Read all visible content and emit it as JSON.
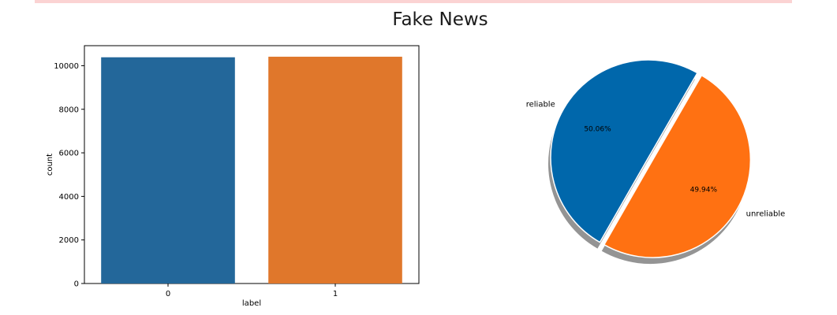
{
  "figure_title": "Fake News",
  "chart_data": [
    {
      "type": "bar",
      "title": "",
      "xlabel": "label",
      "ylabel": "count",
      "categories": [
        "0",
        "1"
      ],
      "values": [
        10387,
        10413
      ],
      "ylim": [
        0,
        10920
      ],
      "yticks": [
        0,
        2000,
        4000,
        6000,
        8000,
        10000
      ],
      "colors": [
        "#23679a",
        "#e0772b"
      ],
      "grid": false
    },
    {
      "type": "pie",
      "labels": [
        "reliable",
        "unreliable"
      ],
      "values": [
        50.06,
        49.94
      ],
      "percent_labels": [
        "50.06%",
        "49.94%"
      ],
      "colors": [
        "#0067ab",
        "#ff7112"
      ],
      "explode": [
        0,
        0.05
      ],
      "shadow": true
    }
  ]
}
